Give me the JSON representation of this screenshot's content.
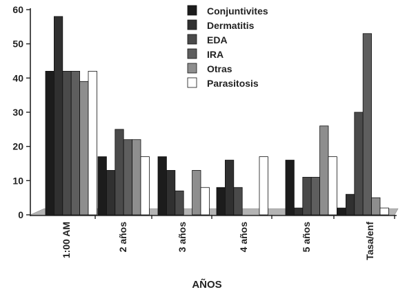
{
  "chart_data": {
    "type": "bar",
    "title": "",
    "xlabel": "AÑOS",
    "ylabel": "",
    "ylim": [
      0,
      60
    ],
    "yticks": [
      0,
      10,
      20,
      30,
      40,
      50,
      60
    ],
    "categories": [
      "1:00 AM",
      "2 años",
      "3 años",
      "4 años",
      "5 años",
      "Tasa/enf"
    ],
    "series": [
      {
        "name": "Conjuntivites",
        "color": "#1c1c1c",
        "values": [
          42,
          17,
          17,
          8,
          16,
          2
        ]
      },
      {
        "name": "Dermatitis",
        "color": "#303030",
        "values": [
          58,
          13,
          13,
          16,
          2,
          6
        ]
      },
      {
        "name": "EDA",
        "color": "#4a4a4a",
        "values": [
          42,
          25,
          7,
          8,
          11,
          30
        ]
      },
      {
        "name": "IRA",
        "color": "#5e5e5e",
        "values": [
          42,
          22,
          0,
          0,
          11,
          53
        ]
      },
      {
        "name": "Otras",
        "color": "#8e8e8e",
        "values": [
          39,
          22,
          13,
          0,
          26,
          5
        ]
      },
      {
        "name": "Parasitosis",
        "color": "#ffffff",
        "values": [
          42,
          17,
          8,
          17,
          17,
          2
        ]
      }
    ],
    "grid": false,
    "legend": "top-right",
    "floor_color": "#b4b4b4"
  }
}
